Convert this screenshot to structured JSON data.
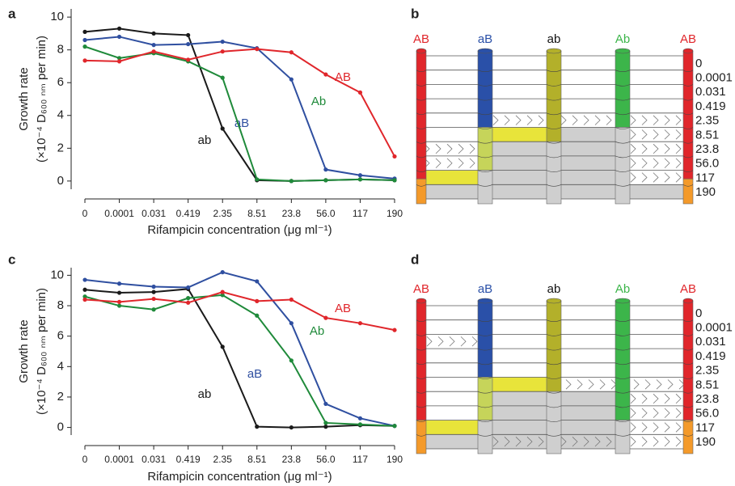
{
  "panels": [
    "a",
    "b",
    "c",
    "d"
  ],
  "chart_data": [
    {
      "type": "line",
      "categories": [
        "0",
        "0.0001",
        "0.031",
        "0.419",
        "2.35",
        "8.51",
        "23.8",
        "56.0",
        "117",
        "190"
      ],
      "x_label": "Rifampicin concentration (μg ml⁻¹)",
      "y_label": [
        "Growth rate",
        "(×10⁻⁴ D₆₀₀ ₙₘ per min)"
      ],
      "ylim": [
        -0.5,
        10.5
      ],
      "yticks": [
        0,
        2,
        4,
        6,
        8,
        10
      ],
      "series": [
        {
          "name": "ab",
          "color": "#1a1a1a",
          "values": [
            9.1,
            9.3,
            9.0,
            8.9,
            3.2,
            0.05,
            0.0,
            0.05,
            0.1,
            0.05
          ]
        },
        {
          "name": "aB",
          "color": "#2f4fa0",
          "values": [
            8.6,
            8.8,
            8.3,
            8.35,
            8.5,
            8.1,
            6.2,
            0.7,
            0.35,
            0.15
          ]
        },
        {
          "name": "Ab",
          "color": "#1f8a3a",
          "values": [
            8.2,
            7.5,
            7.8,
            7.3,
            6.3,
            0.1,
            0.0,
            0.05,
            0.1,
            0.05
          ]
        },
        {
          "name": "AB",
          "color": "#e0262b",
          "values": [
            7.35,
            7.3,
            7.9,
            7.4,
            7.9,
            8.05,
            7.85,
            6.5,
            5.4,
            1.5
          ]
        }
      ]
    },
    {
      "type": "line",
      "categories": [
        "0",
        "0.0001",
        "0.031",
        "0.419",
        "2.35",
        "8.51",
        "23.8",
        "56.0",
        "117",
        "190"
      ],
      "x_label": "Rifampicin concentration (μg ml⁻¹)",
      "y_label": [
        "Growth rate",
        "(×10⁻⁴ D₆₀₀ ₙₘ per min)"
      ],
      "ylim": [
        -0.5,
        10.5
      ],
      "yticks": [
        0,
        2,
        4,
        6,
        8,
        10
      ],
      "series": [
        {
          "name": "ab",
          "color": "#1a1a1a",
          "values": [
            9.05,
            8.85,
            8.9,
            9.1,
            5.3,
            0.05,
            0.0,
            0.05,
            0.15,
            0.1
          ]
        },
        {
          "name": "aB",
          "color": "#2f4fa0",
          "values": [
            9.7,
            9.45,
            9.25,
            9.2,
            10.2,
            9.6,
            6.85,
            1.55,
            0.6,
            0.1
          ]
        },
        {
          "name": "Ab",
          "color": "#1f8a3a",
          "values": [
            8.6,
            8.0,
            7.75,
            8.5,
            8.7,
            7.35,
            4.4,
            0.3,
            0.2,
            0.1
          ]
        },
        {
          "name": "AB",
          "color": "#e0262b",
          "values": [
            8.4,
            8.25,
            8.45,
            8.2,
            8.9,
            8.3,
            8.4,
            7.2,
            6.85,
            6.4
          ]
        }
      ]
    }
  ],
  "diagrams": [
    {
      "genotypes": [
        "AB",
        "aB",
        "ab",
        "Ab",
        "AB"
      ],
      "concentrations": [
        "0",
        "0.0001",
        "0.031",
        "0.419",
        "2.35",
        "8.51",
        "23.8",
        "56.0",
        "117",
        "190"
      ]
    },
    {
      "genotypes": [
        "AB",
        "aB",
        "ab",
        "Ab",
        "AB"
      ],
      "concentrations": [
        "0",
        "0.0001",
        "0.031",
        "0.419",
        "2.35",
        "8.51",
        "23.8",
        "56.0",
        "117",
        "190"
      ]
    }
  ]
}
